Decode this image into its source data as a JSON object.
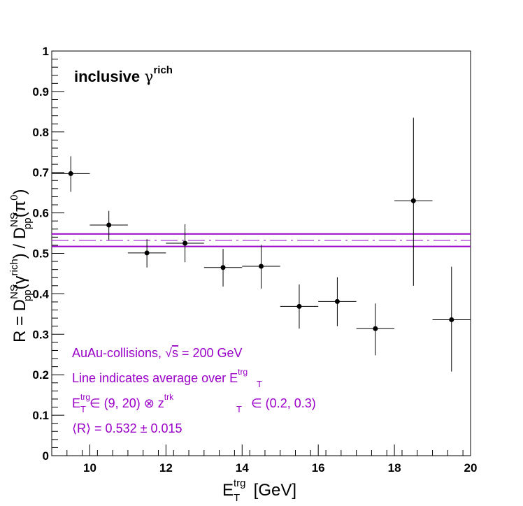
{
  "chart_data": {
    "type": "scatter",
    "title": "",
    "xlim": [
      9,
      20
    ],
    "ylim": [
      0,
      1
    ],
    "x_ticks": [
      10,
      12,
      14,
      16,
      18,
      20
    ],
    "y_ticks": [
      0,
      0.1,
      0.2,
      0.3,
      0.4,
      0.5,
      0.6,
      0.7,
      0.8,
      0.9,
      1
    ],
    "x_ticks_text": [
      "10",
      "12",
      "14",
      "16",
      "18",
      "20"
    ],
    "y_ticks_text": [
      "0",
      "0.1",
      "0.2",
      "0.3",
      "0.4",
      "0.5",
      "0.6",
      "0.7",
      "0.8",
      "0.9",
      "1"
    ],
    "xlabel": {
      "base": "E",
      "sub": "T",
      "sup": "trg",
      "unit": " [GeV]"
    },
    "ylabel": {
      "p1": "R = D",
      "p1_sup": "NS",
      "p1_sub": "pp",
      "p2": "(γ",
      "p2_sup": "rich",
      "p3": ") / D",
      "p3_sup": "NS",
      "p3_sub": "pp",
      "p4": "(π",
      "p4_sup": "0",
      "p5": ")"
    },
    "grid": false,
    "series": [
      {
        "points": [
          {
            "x": 9.5,
            "xerr": 0.5,
            "y": 0.697,
            "ylo": 0.652,
            "yhi": 0.74
          },
          {
            "x": 10.5,
            "xerr": 0.5,
            "y": 0.57,
            "ylo": 0.533,
            "yhi": 0.605
          },
          {
            "x": 11.5,
            "xerr": 0.5,
            "y": 0.501,
            "ylo": 0.465,
            "yhi": 0.535
          },
          {
            "x": 12.5,
            "xerr": 0.5,
            "y": 0.525,
            "ylo": 0.478,
            "yhi": 0.572
          },
          {
            "x": 13.5,
            "xerr": 0.5,
            "y": 0.465,
            "ylo": 0.418,
            "yhi": 0.511
          },
          {
            "x": 14.5,
            "xerr": 0.5,
            "y": 0.468,
            "ylo": 0.413,
            "yhi": 0.521
          },
          {
            "x": 15.5,
            "xerr": 0.5,
            "y": 0.369,
            "ylo": 0.314,
            "yhi": 0.423
          },
          {
            "x": 16.5,
            "xerr": 0.5,
            "y": 0.381,
            "ylo": 0.32,
            "yhi": 0.441
          },
          {
            "x": 17.5,
            "xerr": 0.5,
            "y": 0.314,
            "ylo": 0.248,
            "yhi": 0.376
          },
          {
            "x": 18.5,
            "xerr": 0.5,
            "y": 0.63,
            "ylo": 0.42,
            "yhi": 0.835
          },
          {
            "x": 19.5,
            "xerr": 0.5,
            "y": 0.336,
            "ylo": 0.208,
            "yhi": 0.467
          }
        ]
      }
    ],
    "average_band": {
      "mean": 0.532,
      "lower": 0.517,
      "upper": 0.548
    },
    "colors": {
      "points": "#000000",
      "band": "#9a00c8"
    },
    "annotations": {
      "tag": {
        "text": "inclusive ",
        "greek": "γ",
        "sup": "rich"
      },
      "line1": {
        "pre": "AuAu-collisions, ",
        "sqrt": "√",
        "s": "s",
        "post": " = 200 GeV"
      },
      "line2": {
        "pre": "Line indicates average over E",
        "sup": "trg",
        "sub": "T"
      },
      "line3": {
        "e": "E",
        "e_sup": "trg",
        "e_sub": "T",
        "mid": " ∈ (9, 20) ⊗ z",
        "z_sup": "trk",
        "z_sub": "T",
        "post": " ∈ (0.2, 0.3)"
      },
      "line4": {
        "text": "⟨R⟩ = 0.532 ± 0.015"
      }
    }
  }
}
